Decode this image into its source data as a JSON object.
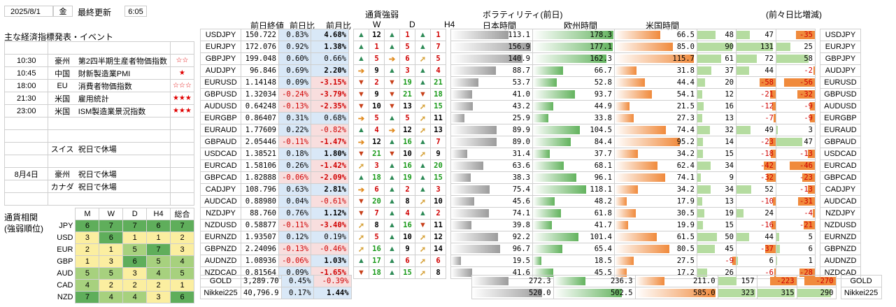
{
  "header": {
    "date": "2025/8/1",
    "weekday": "金",
    "last_update_label": "最終更新",
    "last_update_time": "6:05"
  },
  "events": {
    "title": "主な経済指標発表・イベント",
    "rows": [
      {
        "time": "",
        "country": "",
        "name": "",
        "stars": ""
      },
      {
        "time": "10:30",
        "country": "豪州",
        "name": "第2四半期生産者物価指数",
        "stars": "☆☆"
      },
      {
        "time": "10:45",
        "country": "中国",
        "name": "財新製造業PMI",
        "stars": "★"
      },
      {
        "time": "18:00",
        "country": "EU",
        "name": "消費者物価指数",
        "stars": "☆☆☆"
      },
      {
        "time": "21:30",
        "country": "米国",
        "name": "雇用統計",
        "stars": "★★★"
      },
      {
        "time": "23:00",
        "country": "米国",
        "name": "ISM製造業景況指数",
        "stars": "★★★"
      },
      {
        "time": "",
        "country": "",
        "name": "",
        "stars": ""
      },
      {
        "time": "",
        "country": "",
        "name": "",
        "stars": ""
      },
      {
        "time": "",
        "country": "スイス",
        "name": "祝日で休場",
        "stars": ""
      },
      {
        "time": "",
        "country": "",
        "name": "",
        "stars": ""
      },
      {
        "time": "8月4日",
        "country": "豪州",
        "name": "祝日で休場",
        "stars": ""
      },
      {
        "time": "",
        "country": "カナダ",
        "name": "祝日で休場",
        "stars": ""
      },
      {
        "time": "",
        "country": "",
        "name": "",
        "stars": ""
      }
    ]
  },
  "correlation": {
    "title1": "通貨相関",
    "title2": "(強弱順位)",
    "cols": [
      "M",
      "W",
      "D",
      "H4",
      "総合"
    ],
    "rows": [
      {
        "ccy": "JPY",
        "vals": [
          "6",
          "7",
          "7",
          "6",
          "7"
        ]
      },
      {
        "ccy": "USD",
        "vals": [
          "3",
          "6",
          "1",
          "1",
          "2"
        ]
      },
      {
        "ccy": "EUR",
        "vals": [
          "2",
          "1",
          "5",
          "7",
          "3"
        ]
      },
      {
        "ccy": "GBP",
        "vals": [
          "1",
          "3",
          "6",
          "5",
          "4"
        ]
      },
      {
        "ccy": "AUD",
        "vals": [
          "5",
          "5",
          "3",
          "4",
          "5"
        ]
      },
      {
        "ccy": "CAD",
        "vals": [
          "4",
          "2",
          "2",
          "2",
          "1"
        ]
      },
      {
        "ccy": "NZD",
        "vals": [
          "7",
          "4",
          "4",
          "3",
          "6"
        ]
      }
    ]
  },
  "columns": {
    "prev_close": "前日終値",
    "day_chg": "前日比",
    "month_chg": "前月比",
    "strength": "通貨強弱",
    "w": "W",
    "d": "D",
    "h4": "H4",
    "volatility": "ボラティリティ(前日)",
    "jp": "日本時間",
    "eu": "欧州時間",
    "us": "米国時間",
    "prev_day_chg": "(前々日比増減)"
  },
  "pairs": [
    {
      "pair": "USDJPY",
      "close": "150.722",
      "day": "0.83%",
      "mon": "4.68%",
      "w": "up",
      "wn": "12",
      "d": "up",
      "dn": "1",
      "h4": "up",
      "hn": "1",
      "jp": "113.1",
      "eu": "178.3",
      "us": "66.5",
      "c1": "48",
      "c2": "47",
      "c3": "-35"
    },
    {
      "pair": "EURJPY",
      "close": "172.076",
      "day": "0.92%",
      "mon": "1.38%",
      "w": "up",
      "wn": "1",
      "d": "up",
      "dn": "5",
      "h4": "up",
      "hn": "7",
      "jp": "156.9",
      "eu": "177.1",
      "us": "85.0",
      "c1": "90",
      "c2": "131",
      "c3": "25"
    },
    {
      "pair": "GBPJPY",
      "close": "199.048",
      "day": "0.60%",
      "mon": "0.66%",
      "w": "up",
      "wn": "5",
      "d": "rt",
      "dn": "6",
      "h4": "ur",
      "hn": "5",
      "jp": "140.9",
      "eu": "162.3",
      "us": "115.7",
      "c1": "61",
      "c2": "72",
      "c3": "58"
    },
    {
      "pair": "AUDJPY",
      "close": "96.846",
      "day": "0.69%",
      "mon": "2.20%",
      "w": "rt",
      "wn": "9",
      "d": "up",
      "dn": "3",
      "h4": "up",
      "hn": "4",
      "jp": "88.7",
      "eu": "66.7",
      "us": "31.8",
      "c1": "37",
      "c2": "44",
      "c3": "-2"
    },
    {
      "pair": "EURUSD",
      "close": "1.14148",
      "day": "0.09%",
      "mon": "-3.15%",
      "w": "dn",
      "wn": "2",
      "d": "dn",
      "dn": "19",
      "h4": "up",
      "hn": "21",
      "jp": "53.7",
      "eu": "52.8",
      "us": "44.4",
      "c1": "20",
      "c2": "-58",
      "c3": "-56"
    },
    {
      "pair": "GBPUSD",
      "close": "1.32034",
      "day": "-0.24%",
      "mon": "-3.79%",
      "w": "dn",
      "wn": "9",
      "d": "dn",
      "dn": "21",
      "h4": "dn",
      "hn": "18",
      "jp": "41.0",
      "eu": "93.7",
      "us": "54.1",
      "c1": "12",
      "c2": "-21",
      "c3": "-32"
    },
    {
      "pair": "AUDUSD",
      "close": "0.64248",
      "day": "-0.13%",
      "mon": "-2.35%",
      "w": "dn",
      "wn": "10",
      "d": "dn",
      "dn": "13",
      "h4": "ur",
      "hn": "15",
      "jp": "43.2",
      "eu": "44.9",
      "us": "21.5",
      "c1": "16",
      "c2": "-12",
      "c3": "-9"
    },
    {
      "pair": "EURGBP",
      "close": "0.86407",
      "day": "0.31%",
      "mon": "0.68%",
      "w": "rt",
      "wn": "5",
      "d": "up",
      "dn": "5",
      "h4": "ur",
      "hn": "11",
      "jp": "25.9",
      "eu": "33.8",
      "us": "27.3",
      "c1": "13",
      "c2": "-7",
      "c3": "-9"
    },
    {
      "pair": "EURAUD",
      "close": "1.77609",
      "day": "0.22%",
      "mon": "-0.82%",
      "w": "up",
      "wn": "4",
      "d": "rt",
      "dn": "12",
      "h4": "ur",
      "hn": "13",
      "jp": "89.9",
      "eu": "104.5",
      "us": "74.4",
      "c1": "32",
      "c2": "49",
      "c3": "3"
    },
    {
      "pair": "GBPAUD",
      "close": "2.05446",
      "day": "-0.11%",
      "mon": "-1.47%",
      "w": "rt",
      "wn": "12",
      "d": "up",
      "dn": "16",
      "h4": "up",
      "hn": "7",
      "jp": "89.0",
      "eu": "84.4",
      "us": "95.2",
      "c1": "14",
      "c2": "-23",
      "c3": "47"
    },
    {
      "pair": "USDCAD",
      "close": "1.38521",
      "day": "0.18%",
      "mon": "1.80%",
      "w": "dn",
      "wn": "21",
      "d": "dn",
      "dn": "10",
      "h4": "ur",
      "hn": "9",
      "jp": "31.4",
      "eu": "37.7",
      "us": "34.2",
      "c1": "15",
      "c2": "-18",
      "c3": "-13"
    },
    {
      "pair": "EURCAD",
      "close": "1.58106",
      "day": "0.26%",
      "mon": "-1.42%",
      "w": "ur",
      "wn": "3",
      "d": "up",
      "dn": "16",
      "h4": "up",
      "hn": "20",
      "jp": "63.6",
      "eu": "68.1",
      "us": "62.4",
      "c1": "34",
      "c2": "-42",
      "c3": "-46"
    },
    {
      "pair": "GBPCAD",
      "close": "1.82888",
      "day": "-0.06%",
      "mon": "-2.09%",
      "w": "up",
      "wn": "18",
      "d": "up",
      "dn": "19",
      "h4": "up",
      "hn": "15",
      "jp": "38.3",
      "eu": "96.1",
      "us": "74.1",
      "c1": "9",
      "c2": "-32",
      "c3": "-23"
    },
    {
      "pair": "CADJPY",
      "close": "108.796",
      "day": "0.63%",
      "mon": "2.81%",
      "w": "rt",
      "wn": "6",
      "d": "up",
      "dn": "2",
      "h4": "up",
      "hn": "3",
      "jp": "75.4",
      "eu": "118.1",
      "us": "34.2",
      "c1": "34",
      "c2": "52",
      "c3": "-13"
    },
    {
      "pair": "AUDCAD",
      "close": "0.88980",
      "day": "0.04%",
      "mon": "-0.61%",
      "w": "dn",
      "wn": "20",
      "d": "up",
      "dn": "8",
      "h4": "ur",
      "hn": "10",
      "jp": "45.6",
      "eu": "48.2",
      "us": "17.9",
      "c1": "13",
      "c2": "-10",
      "c3": "-31"
    },
    {
      "pair": "NZDJPY",
      "close": "88.760",
      "day": "0.76%",
      "mon": "1.12%",
      "w": "dn",
      "wn": "7",
      "d": "up",
      "dn": "4",
      "h4": "up",
      "hn": "2",
      "jp": "74.1",
      "eu": "61.8",
      "us": "30.5",
      "c1": "19",
      "c2": "24",
      "c3": "-4"
    },
    {
      "pair": "NZDUSD",
      "close": "0.58877",
      "day": "-0.11%",
      "mon": "-3.40%",
      "w": "ur",
      "wn": "8",
      "d": "up",
      "dn": "16",
      "h4": "dn",
      "hn": "11",
      "jp": "39.8",
      "eu": "41.7",
      "us": "19.9",
      "c1": "15",
      "c2": "-16",
      "c3": "-21"
    },
    {
      "pair": "EURNZD",
      "close": "1.93507",
      "day": "0.12%",
      "mon": "0.19%",
      "w": "ur",
      "wn": "5",
      "d": "up",
      "dn": "10",
      "h4": "ur",
      "hn": "12",
      "jp": "92.2",
      "eu": "101.4",
      "us": "61.5",
      "c1": "50",
      "c2": "44",
      "c3": "5"
    },
    {
      "pair": "GBPNZD",
      "close": "2.24096",
      "day": "-0.13%",
      "mon": "-0.46%",
      "w": "ur",
      "wn": "16",
      "d": "up",
      "dn": "9",
      "h4": "ur",
      "hn": "14",
      "jp": "96.7",
      "eu": "65.4",
      "us": "80.5",
      "c1": "45",
      "c2": "-37",
      "c3": "6"
    },
    {
      "pair": "AUDNZD",
      "close": "1.08936",
      "day": "-0.06%",
      "mon": "1.03%",
      "w": "up",
      "wn": "17",
      "d": "up",
      "dn": "6",
      "h4": "ur",
      "hn": "6",
      "jp": "19.5",
      "eu": "18.5",
      "us": "27.5",
      "c1": "-9",
      "c2": "6",
      "c3": "1"
    },
    {
      "pair": "NZDCAD",
      "close": "0.81564",
      "day": "0.09%",
      "mon": "-1.65%",
      "w": "dn",
      "wn": "18",
      "d": "up",
      "dn": "15",
      "h4": "ur",
      "hn": "8",
      "jp": "41.6",
      "eu": "45.5",
      "us": "17.2",
      "c1": "26",
      "c2": "-6",
      "c3": "-28"
    }
  ],
  "extras": [
    {
      "pair": "GOLD",
      "close": "3,289.70",
      "day": "0.45%",
      "mon": "-0.39%",
      "jp": "272.3",
      "eu": "236.3",
      "us": "211.0",
      "c1": "157",
      "c2": "-223",
      "c3": "-270"
    },
    {
      "pair": "Nikkei225",
      "close": "40,796.9",
      "day": "0.17%",
      "mon": "1.44%",
      "jp": "520.0",
      "eu": "502.5",
      "us": "585.0",
      "c1": "323",
      "c2": "315",
      "c3": "290"
    }
  ],
  "colors": {
    "jp_bar": "#9c9c9c",
    "eu_bar": "#63b35e",
    "us_bar": "#f08a3c",
    "neg_bg": "#f8dede",
    "pos_bg": "#d9e8f7"
  }
}
